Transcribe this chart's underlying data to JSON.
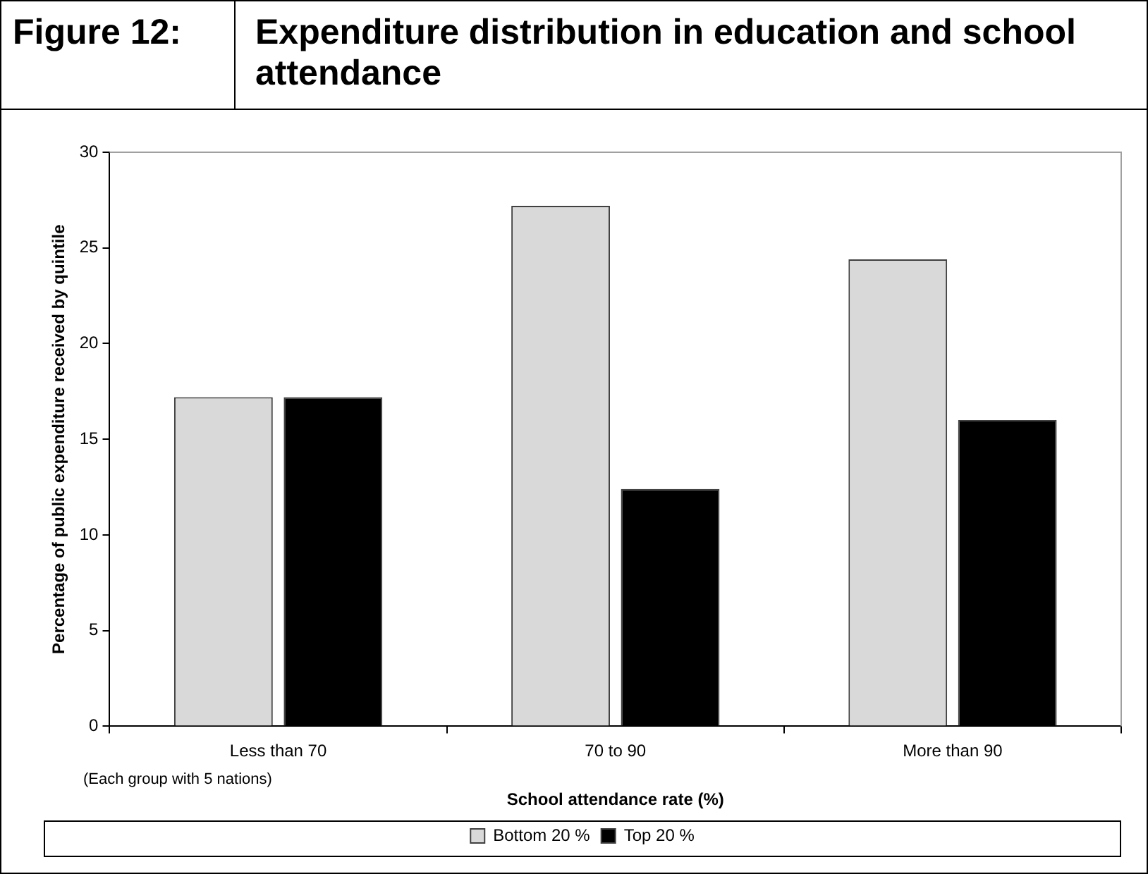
{
  "chart_data": {
    "type": "bar",
    "title": "Expenditure distribution in education and school attendance",
    "annotations": [
      "Figure 12:",
      "(Each group with 5 nations)"
    ],
    "xlabel": "School attendance rate (%)",
    "ylabel": "Percentage of public expenditure received by quintile",
    "categories": [
      "Less than 70",
      "70 to 90",
      "More than 90"
    ],
    "series": [
      {
        "name": "Bottom 20 %",
        "color": "#d9d9d9",
        "values": [
          17.2,
          27.2,
          24.4
        ]
      },
      {
        "name": "Top 20 %",
        "color": "#000000",
        "values": [
          17.2,
          12.4,
          16.0
        ]
      }
    ],
    "ylim": [
      0,
      30
    ],
    "yticks": [
      0,
      5,
      10,
      15,
      20,
      25,
      30
    ],
    "grid": false,
    "legend": "bottom"
  }
}
